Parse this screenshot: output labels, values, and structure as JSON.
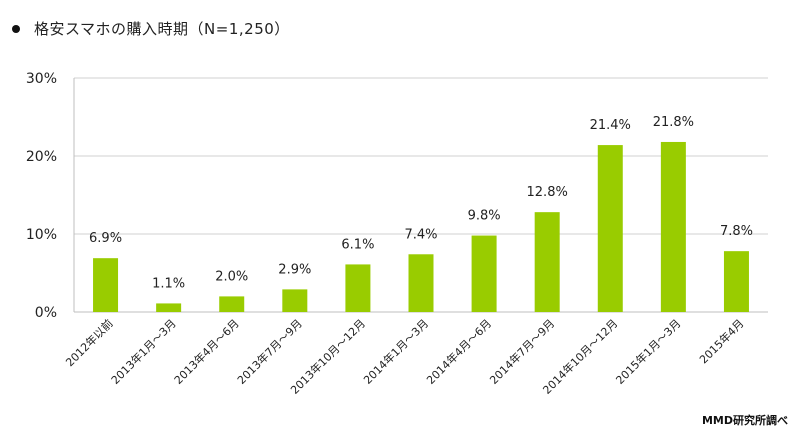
{
  "header": {
    "title": "格安スマホの購入時期（N=1,250）"
  },
  "source": "MMD研究所調べ",
  "chart_data": {
    "type": "bar",
    "title": "格安スマホの購入時期（N=1,250）",
    "categories": [
      "2012年以前",
      "2013年1月～3月",
      "2013年4月～6月",
      "2013年7月～9月",
      "2013年10月～12月",
      "2014年1月～3月",
      "2014年4月～6月",
      "2014年7月～9月",
      "2014年10月～12月",
      "2015年1月～3月",
      "2015年4月"
    ],
    "values": [
      6.9,
      1.1,
      2.0,
      2.9,
      6.1,
      7.4,
      9.8,
      12.8,
      21.4,
      21.8,
      7.8
    ],
    "value_labels": [
      "6.9%",
      "1.1%",
      "2.0%",
      "2.9%",
      "6.1%",
      "7.4%",
      "9.8%",
      "12.8%",
      "21.4%",
      "21.8%",
      "7.8%"
    ],
    "yticks": [
      0,
      10,
      20,
      30
    ],
    "ytick_labels": [
      "0%",
      "10%",
      "20%",
      "30%"
    ],
    "ylim": [
      0,
      30
    ],
    "grid": true,
    "bar_color": "#99cc00",
    "grid_color": "#d0d0d0"
  }
}
